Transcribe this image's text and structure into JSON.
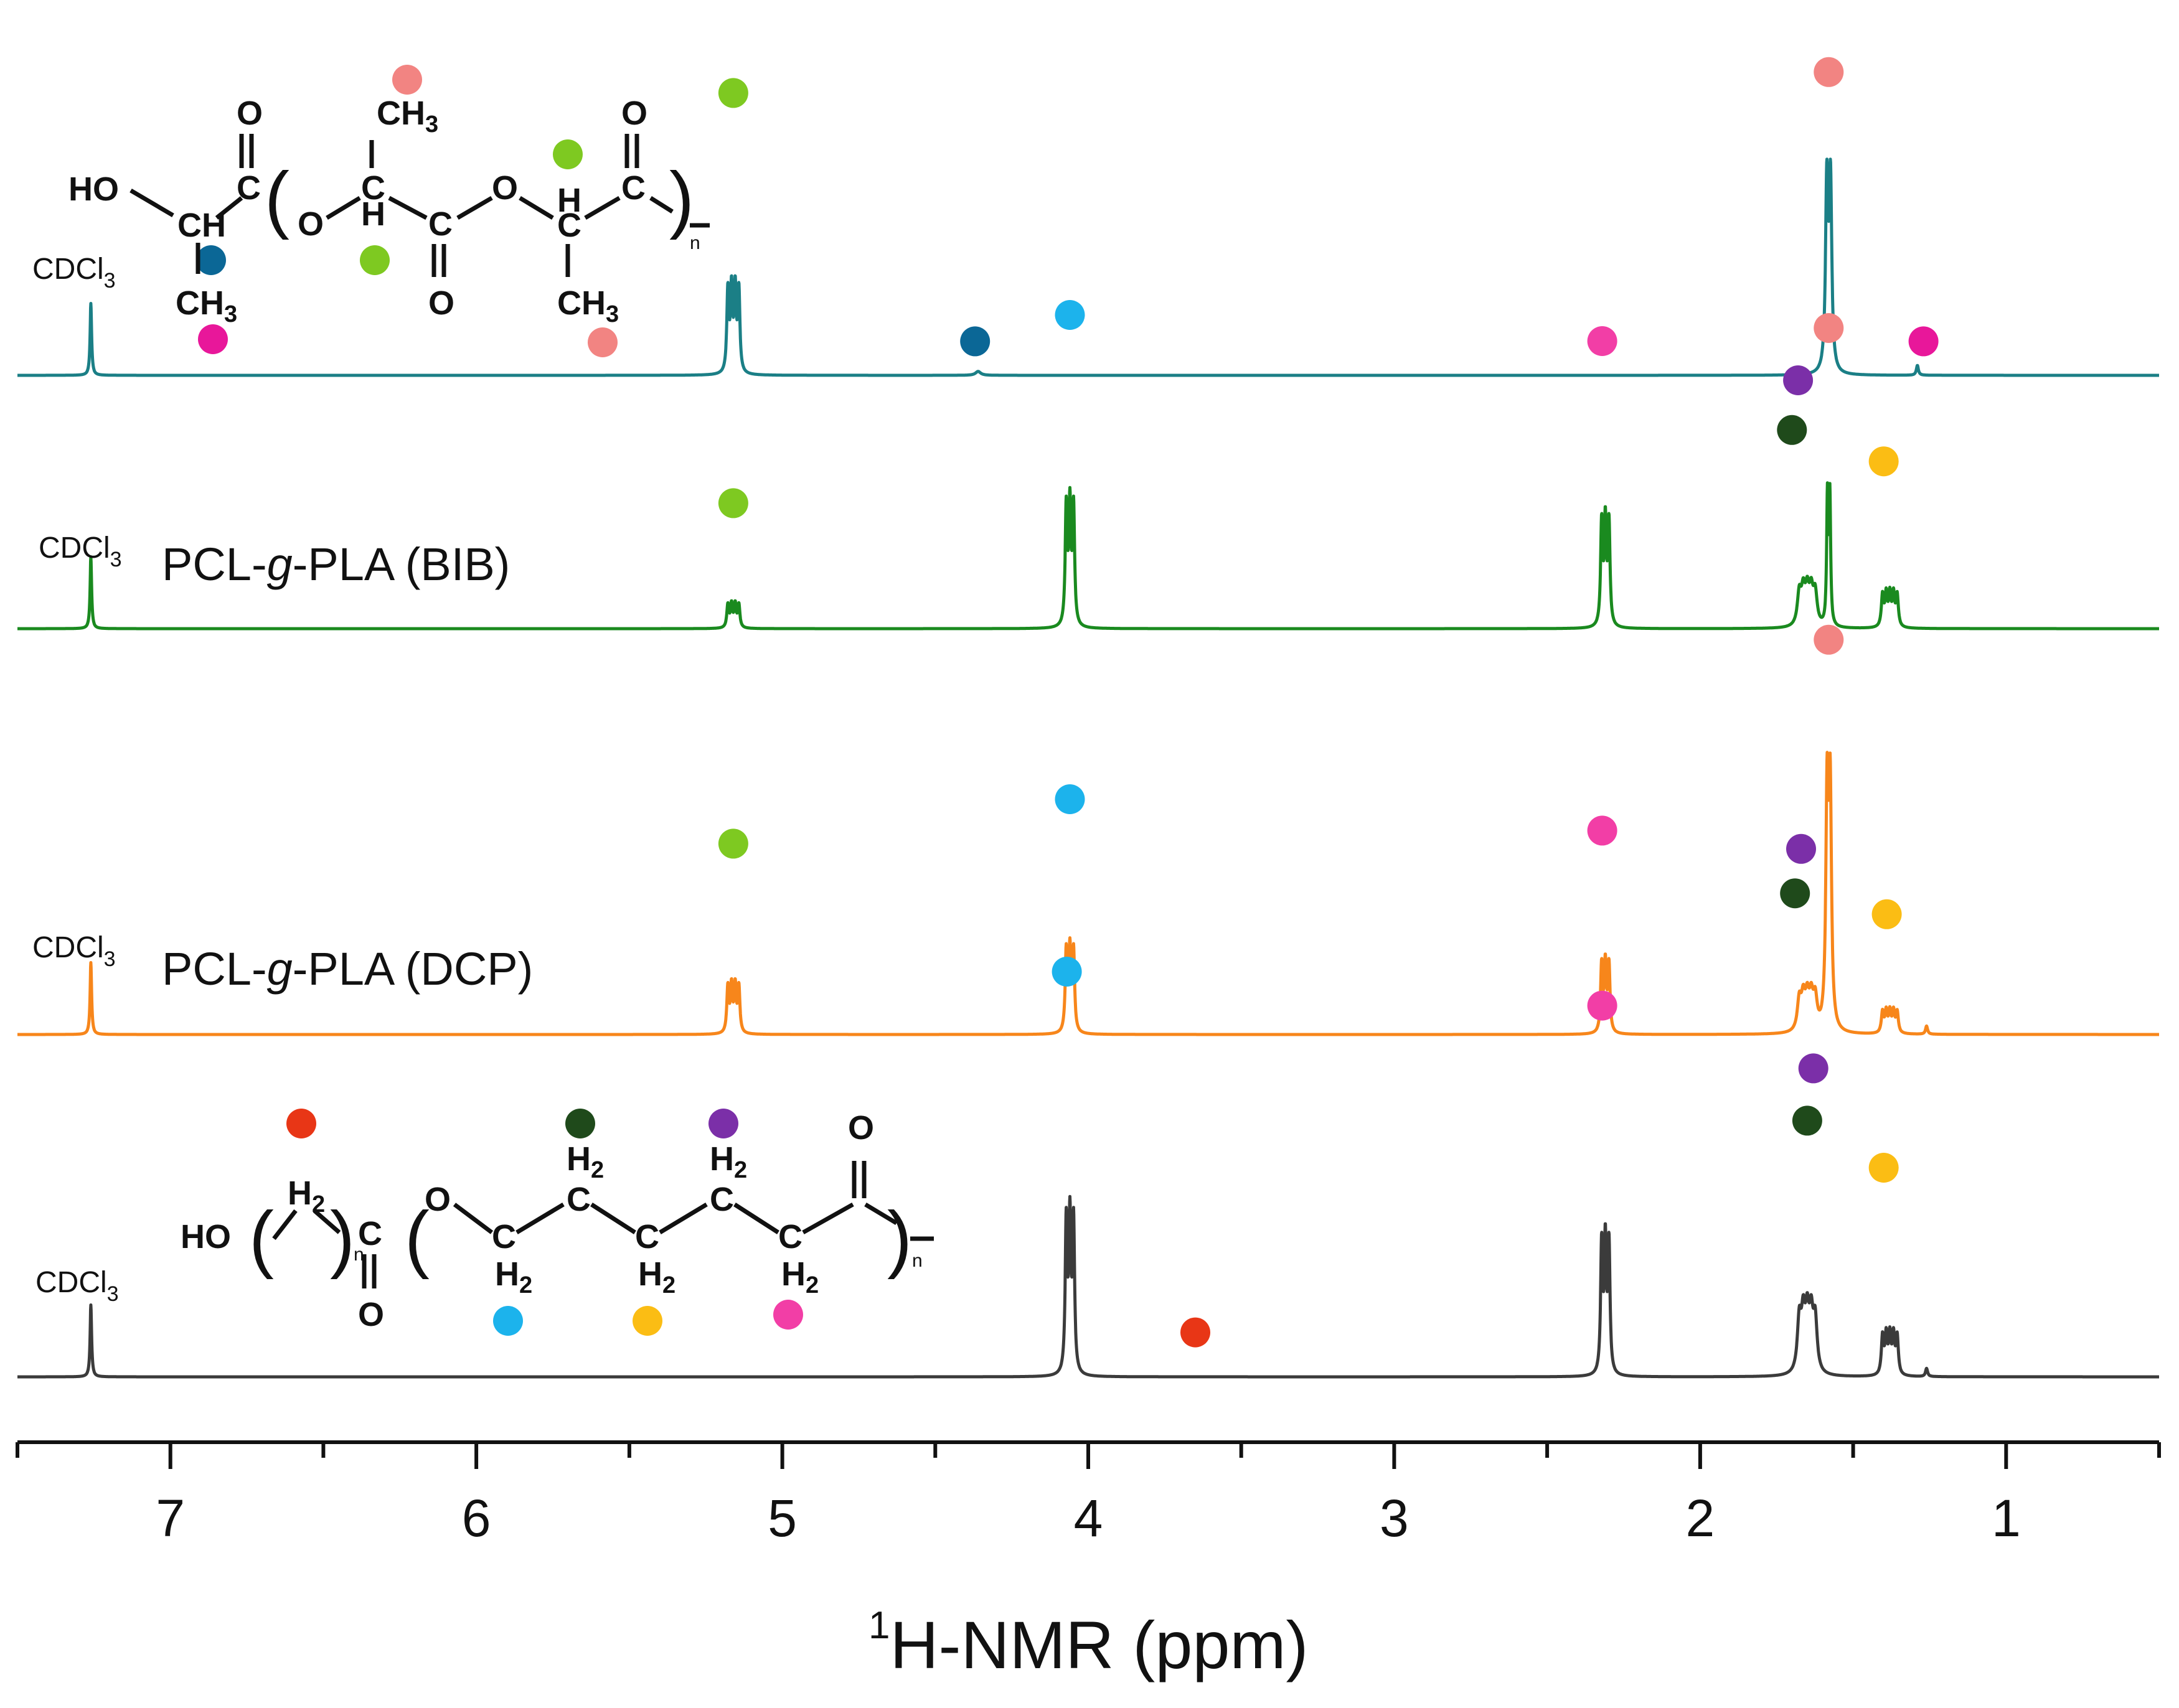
{
  "chart_data": {
    "type": "line",
    "title": "",
    "xlabel": "H-NMR (ppm)",
    "xlabel_superscript": "1",
    "ylabel": "",
    "xlim": [
      7.5,
      0.5
    ],
    "x_reversed": true,
    "x_ticks": [
      7,
      6,
      5,
      4,
      3,
      2,
      1
    ],
    "x_tick_labels": [
      "7",
      "6",
      "5",
      "4",
      "3",
      "2",
      "1"
    ],
    "minor_tick_step": 0.5,
    "grid": false,
    "solvent_label": "CDCl",
    "solvent_subscript": "3",
    "peak_marker_colors": {
      "lime": "#7ec921",
      "salmon": "#f28482",
      "navy": "#0b6796",
      "magenta": "#e8179a",
      "cyan": "#1cb3ec",
      "pink": "#f23ea6",
      "purple": "#7b2fa8",
      "darkgreen": "#1f4a1b",
      "yellow": "#fbbd14",
      "red": "#e83616"
    },
    "series": [
      {
        "name": "PLA",
        "label": "",
        "color": "#1b7f86",
        "peaks": [
          {
            "ppm": 7.26,
            "height": 0.22,
            "width": 0.006,
            "split": 1,
            "sep": 0
          },
          {
            "ppm": 5.16,
            "height": 1.0,
            "width": 0.008,
            "split": 4,
            "sep": 0.012
          },
          {
            "ppm": 4.36,
            "height": 0.012,
            "width": 0.02,
            "split": 1,
            "sep": 0
          },
          {
            "ppm": 1.58,
            "height": 1.15,
            "width": 0.01,
            "split": 2,
            "sep": 0.012
          },
          {
            "ppm": 1.29,
            "height": 0.03,
            "width": 0.008,
            "split": 1,
            "sep": 0
          }
        ],
        "markers": [
          {
            "ppm": 5.16,
            "color": "lime",
            "level": 1.08
          },
          {
            "ppm": 4.37,
            "color": "navy",
            "level": 0.13
          },
          {
            "ppm": 1.58,
            "color": "salmon",
            "level": 1.16
          },
          {
            "ppm": 1.27,
            "color": "magenta",
            "level": 0.13
          }
        ]
      },
      {
        "name": "PCL-g-PLA (BIB)",
        "label_main": "PCL-",
        "label_italic": "g",
        "label_rest": "-PLA (BIB)",
        "color": "#1a8a1f",
        "peaks": [
          {
            "ppm": 7.26,
            "height": 0.22,
            "width": 0.006,
            "split": 1,
            "sep": 0
          },
          {
            "ppm": 5.16,
            "height": 0.28,
            "width": 0.008,
            "split": 4,
            "sep": 0.012
          },
          {
            "ppm": 4.06,
            "height": 1.08,
            "width": 0.008,
            "split": 3,
            "sep": 0.012
          },
          {
            "ppm": 2.31,
            "height": 0.94,
            "width": 0.008,
            "split": 3,
            "sep": 0.012
          },
          {
            "ppm": 1.65,
            "height": 0.48,
            "width": 0.015,
            "split": 5,
            "sep": 0.013
          },
          {
            "ppm": 1.58,
            "height": 0.78,
            "width": 0.006,
            "split": 2,
            "sep": 0.008
          },
          {
            "ppm": 1.38,
            "height": 0.48,
            "width": 0.009,
            "split": 5,
            "sep": 0.012
          }
        ],
        "markers": [
          {
            "ppm": 5.16,
            "color": "lime",
            "level": 0.48
          },
          {
            "ppm": 4.06,
            "color": "cyan",
            "level": 1.2
          },
          {
            "ppm": 2.32,
            "color": "pink",
            "level": 1.1
          },
          {
            "ppm": 1.68,
            "color": "purple",
            "level": 0.95
          },
          {
            "ppm": 1.7,
            "color": "darkgreen",
            "level": 0.76
          },
          {
            "ppm": 1.58,
            "color": "salmon",
            "level": 1.15
          },
          {
            "ppm": 1.4,
            "color": "yellow",
            "level": 0.64
          }
        ]
      },
      {
        "name": "PCL-g-PLA (DCP)",
        "label_main": "PCL-",
        "label_italic": "g",
        "label_rest": "-PLA (DCP)",
        "color": "#f7861b",
        "peaks": [
          {
            "ppm": 7.26,
            "height": 0.22,
            "width": 0.006,
            "split": 1,
            "sep": 0
          },
          {
            "ppm": 5.16,
            "height": 0.56,
            "width": 0.008,
            "split": 4,
            "sep": 0.012
          },
          {
            "ppm": 4.06,
            "height": 0.74,
            "width": 0.008,
            "split": 3,
            "sep": 0.012
          },
          {
            "ppm": 2.31,
            "height": 0.62,
            "width": 0.008,
            "split": 3,
            "sep": 0.012
          },
          {
            "ppm": 1.65,
            "height": 0.46,
            "width": 0.015,
            "split": 5,
            "sep": 0.013
          },
          {
            "ppm": 1.58,
            "height": 1.42,
            "width": 0.01,
            "split": 2,
            "sep": 0.01
          },
          {
            "ppm": 1.38,
            "height": 0.32,
            "width": 0.009,
            "split": 5,
            "sep": 0.012
          },
          {
            "ppm": 1.26,
            "height": 0.025,
            "width": 0.008,
            "split": 1,
            "sep": 0
          }
        ],
        "markers": [
          {
            "ppm": 5.16,
            "color": "lime",
            "level": 0.73
          },
          {
            "ppm": 4.06,
            "color": "cyan",
            "level": 0.9
          },
          {
            "ppm": 2.32,
            "color": "pink",
            "level": 0.78
          },
          {
            "ppm": 1.67,
            "color": "purple",
            "level": 0.71
          },
          {
            "ppm": 1.69,
            "color": "darkgreen",
            "level": 0.54
          },
          {
            "ppm": 1.58,
            "color": "salmon",
            "level": 1.51
          },
          {
            "ppm": 1.39,
            "color": "yellow",
            "level": 0.46
          }
        ]
      },
      {
        "name": "PCL",
        "label": "",
        "color": "#3b3b3b",
        "peaks": [
          {
            "ppm": 7.26,
            "height": 0.22,
            "width": 0.006,
            "split": 1,
            "sep": 0
          },
          {
            "ppm": 4.06,
            "height": 1.38,
            "width": 0.008,
            "split": 3,
            "sep": 0.012
          },
          {
            "ppm": 2.31,
            "height": 1.18,
            "width": 0.008,
            "split": 3,
            "sep": 0.012
          },
          {
            "ppm": 1.65,
            "height": 0.78,
            "width": 0.015,
            "split": 5,
            "sep": 0.013
          },
          {
            "ppm": 1.38,
            "height": 0.58,
            "width": 0.009,
            "split": 5,
            "sep": 0.012
          },
          {
            "ppm": 1.26,
            "height": 0.025,
            "width": 0.008,
            "split": 1,
            "sep": 0
          }
        ],
        "markers": [
          {
            "ppm": 4.07,
            "color": "cyan",
            "level": 1.55
          },
          {
            "ppm": 3.65,
            "color": "red",
            "level": 0.17
          },
          {
            "ppm": 2.32,
            "color": "pink",
            "level": 1.42
          },
          {
            "ppm": 1.63,
            "color": "purple",
            "level": 1.18
          },
          {
            "ppm": 1.65,
            "color": "darkgreen",
            "level": 0.98
          },
          {
            "ppm": 1.4,
            "color": "yellow",
            "level": 0.8
          }
        ]
      }
    ]
  },
  "structures": {
    "pla": {
      "hydroxyl": "HO",
      "ch": "CH",
      "c": "C",
      "o": "O",
      "h": "H",
      "ch3": "CH",
      "ch3_sub": "3",
      "n": "n"
    },
    "pcl": {
      "hydroxyl": "HO",
      "h2": "H",
      "h2_sub": "2",
      "c": "C",
      "o": "O",
      "n": "n"
    }
  }
}
